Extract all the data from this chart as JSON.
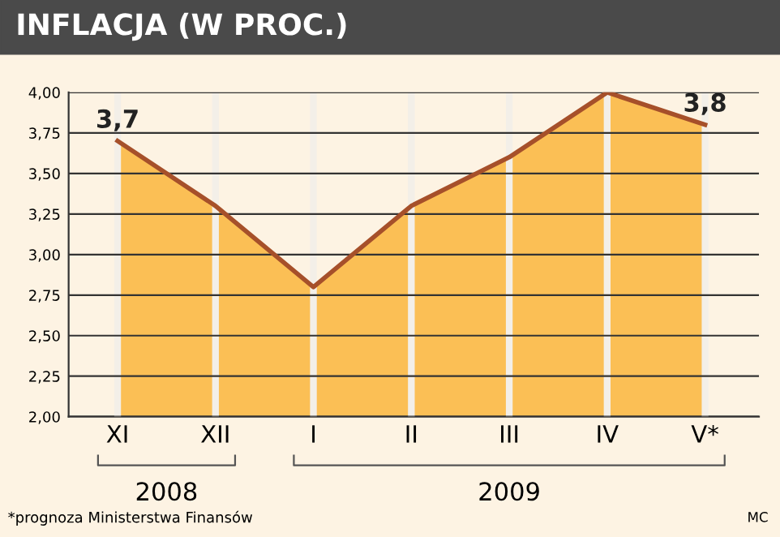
{
  "chart_data": {
    "type": "area",
    "title": "INFLACJA (W PROC.)",
    "categories": [
      "XI",
      "XII",
      "I",
      "II",
      "III",
      "IV",
      "V*"
    ],
    "series": [
      {
        "color": "#fbbf55",
        "values": [
          3.7,
          3.3,
          2.8,
          3.3,
          3.6,
          4.0,
          3.8
        ],
        "value_labels": [
          "3,7",
          null,
          null,
          null,
          null,
          null,
          "3,8"
        ]
      }
    ],
    "ylim": [
      2.0,
      4.0
    ],
    "yticks": [
      {
        "value": 2.0,
        "label": "2,00"
      },
      {
        "value": 2.25,
        "label": "2,25"
      },
      {
        "value": 2.5,
        "label": "2,50"
      },
      {
        "value": 2.75,
        "label": "2,75"
      },
      {
        "value": 3.0,
        "label": "3,00"
      },
      {
        "value": 3.25,
        "label": "3,25"
      },
      {
        "value": 3.5,
        "label": "3,50"
      },
      {
        "value": 3.75,
        "label": "3,75"
      },
      {
        "value": 4.0,
        "label": "4,00"
      }
    ],
    "grid": true,
    "annotations": [
      "2008",
      "2009",
      "*prognoza Ministerstwa Finansów",
      "MC"
    ]
  }
}
